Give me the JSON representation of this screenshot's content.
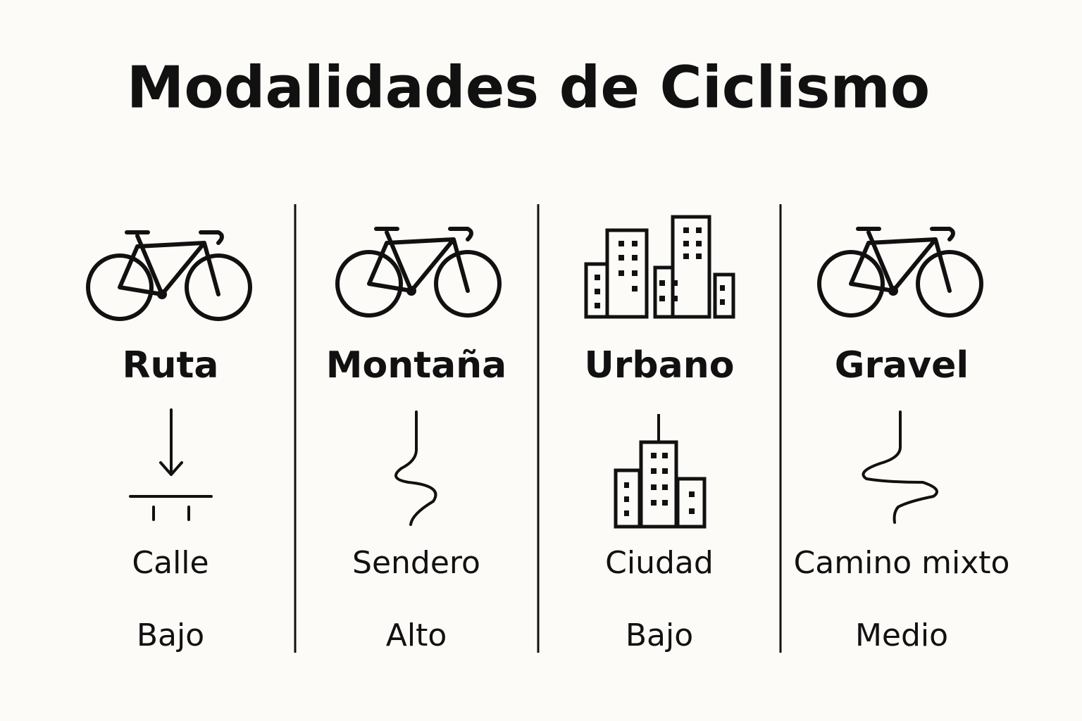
{
  "title": "Modalidades de Ciclismo",
  "columns": [
    {
      "name": "Ruta",
      "terrain": "Calle",
      "level": "Bajo"
    },
    {
      "name": "Montaña",
      "terrain": "Sendero",
      "level": "Alto"
    },
    {
      "name": "Urbano",
      "terrain": "Ciudad",
      "level": "Bajo"
    },
    {
      "name": "Gravel",
      "terrain": "Camino mixto",
      "level": "Medio"
    }
  ]
}
